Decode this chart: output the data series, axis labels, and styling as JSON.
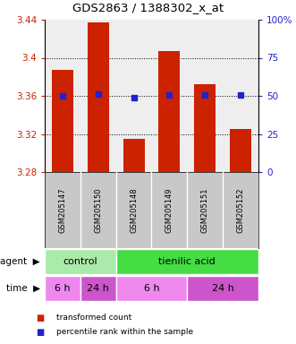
{
  "title": "GDS2863 / 1388302_x_at",
  "samples": [
    "GSM205147",
    "GSM205150",
    "GSM205148",
    "GSM205149",
    "GSM205151",
    "GSM205152"
  ],
  "bar_values": [
    3.387,
    3.437,
    3.315,
    3.407,
    3.372,
    3.325
  ],
  "percentile_values": [
    3.36,
    3.362,
    3.358,
    3.361,
    3.361,
    3.361
  ],
  "y_min": 3.28,
  "y_max": 3.44,
  "y_ticks_left": [
    3.28,
    3.32,
    3.36,
    3.4,
    3.44
  ],
  "y_ticks_right": [
    0,
    25,
    50,
    75,
    100
  ],
  "bar_color": "#cc2200",
  "percentile_color": "#2222cc",
  "agent_groups": [
    {
      "label": "control",
      "start": 0,
      "end": 2,
      "color": "#aaeaaa"
    },
    {
      "label": "tienilic acid",
      "start": 2,
      "end": 6,
      "color": "#44dd44"
    }
  ],
  "time_groups": [
    {
      "label": "6 h",
      "start": 0,
      "end": 1,
      "color": "#ee88ee"
    },
    {
      "label": "24 h",
      "start": 1,
      "end": 2,
      "color": "#cc55cc"
    },
    {
      "label": "6 h",
      "start": 2,
      "end": 4,
      "color": "#ee88ee"
    },
    {
      "label": "24 h",
      "start": 4,
      "end": 6,
      "color": "#cc55cc"
    }
  ],
  "legend_items": [
    {
      "label": "transformed count",
      "color": "#cc2200"
    },
    {
      "label": "percentile rank within the sample",
      "color": "#2222cc"
    }
  ],
  "tick_color_left": "#cc2200",
  "tick_color_right": "#2222cc",
  "grid_lines": [
    3.32,
    3.36,
    3.4
  ],
  "background_color": "#ffffff",
  "plot_bg_color": "#eeeeee",
  "sample_bg_color": "#c8c8c8"
}
